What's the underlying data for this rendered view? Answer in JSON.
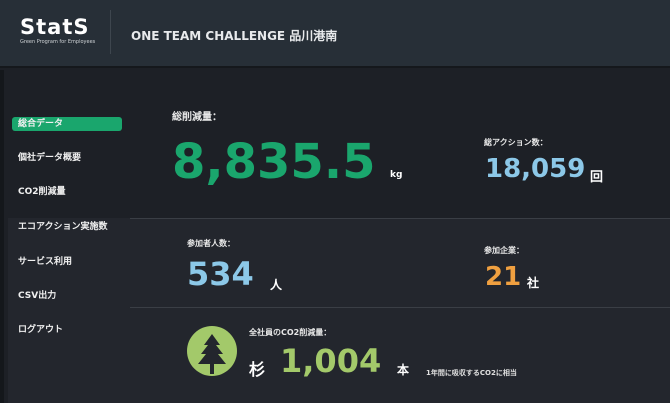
{
  "header": {
    "logo": "StatS",
    "logo_tagline": "Green Program for Employees",
    "title": "ONE TEAM CHALLENGE 品川港南"
  },
  "sidebar": {
    "items": [
      {
        "label": "総合データ",
        "active": true
      },
      {
        "label": "個社データ概要"
      },
      {
        "label": "CO2削減量"
      },
      {
        "label": "エコアクション実施数"
      },
      {
        "label": "サービス利用"
      },
      {
        "label": "CSV出力"
      },
      {
        "label": "ログアウト"
      }
    ]
  },
  "stats": {
    "total_reduction": {
      "label": "総削減量：",
      "value": "8,835.5",
      "unit": "kg",
      "color": "#1aa66d"
    },
    "total_actions": {
      "label": "総アクション数：",
      "value": "18,059",
      "unit": "回",
      "color": "#8cc8e8"
    },
    "participants": {
      "label": "参加者人数：",
      "value": "534",
      "unit": "人",
      "color": "#8cc8e8"
    },
    "companies": {
      "label": "参加企業：",
      "value": "21",
      "unit": "社",
      "color": "#f0a040"
    },
    "trees": {
      "label": "全社員のCO2削減量：",
      "prefix": "杉",
      "value": "1,004",
      "unit": "本",
      "note": "1年間に吸収するCO2に相当",
      "color": "#a3c96a",
      "icon": "tree-icon"
    }
  }
}
